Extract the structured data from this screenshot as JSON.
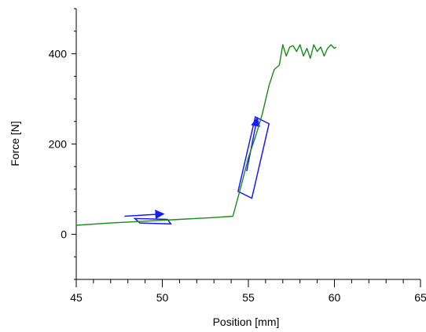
{
  "chart_data": {
    "type": "line",
    "xlabel": "Position [mm]",
    "ylabel": "Force [N]",
    "xlim": [
      45,
      65
    ],
    "ylim": [
      -100,
      500
    ],
    "x_ticks": [
      45,
      50,
      55,
      60,
      65
    ],
    "y_ticks": [
      0,
      200,
      400
    ],
    "grid": false,
    "series": [
      {
        "color": "#1a8a1a",
        "x": [
          45.0,
          47.0,
          49.0,
          51.0,
          53.0,
          54.1,
          54.6,
          55.0,
          55.4,
          55.8,
          56.2,
          56.5,
          56.8,
          57.0,
          57.2,
          57.4,
          57.6,
          57.8,
          58.0,
          58.2,
          58.4,
          58.6,
          58.8,
          59.0,
          59.2,
          59.4,
          59.6,
          59.8,
          60.0,
          60.1
        ],
        "y": [
          20,
          25,
          29,
          33,
          37,
          40,
          110,
          170,
          215,
          265,
          330,
          365,
          375,
          420,
          395,
          415,
          418,
          405,
          420,
          395,
          412,
          390,
          420,
          405,
          415,
          395,
          412,
          420,
          412,
          415
        ]
      }
    ],
    "annotations": [
      {
        "kind": "rectangle-outline",
        "color": "#1a1aff",
        "corners": [
          [
            48.7,
            25
          ],
          [
            48.4,
            35
          ],
          [
            50.3,
            33
          ],
          [
            50.5,
            23
          ]
        ],
        "arrow": {
          "from": [
            47.8,
            40
          ],
          "to": [
            50.0,
            45
          ]
        }
      },
      {
        "kind": "rectangle-outline",
        "color": "#1a1aff",
        "corners": [
          [
            54.4,
            95
          ],
          [
            55.4,
            260
          ],
          [
            56.2,
            245
          ],
          [
            55.2,
            80
          ]
        ],
        "arrow": {
          "from": [
            54.9,
            140
          ],
          "to": [
            55.5,
            255
          ]
        }
      }
    ]
  }
}
